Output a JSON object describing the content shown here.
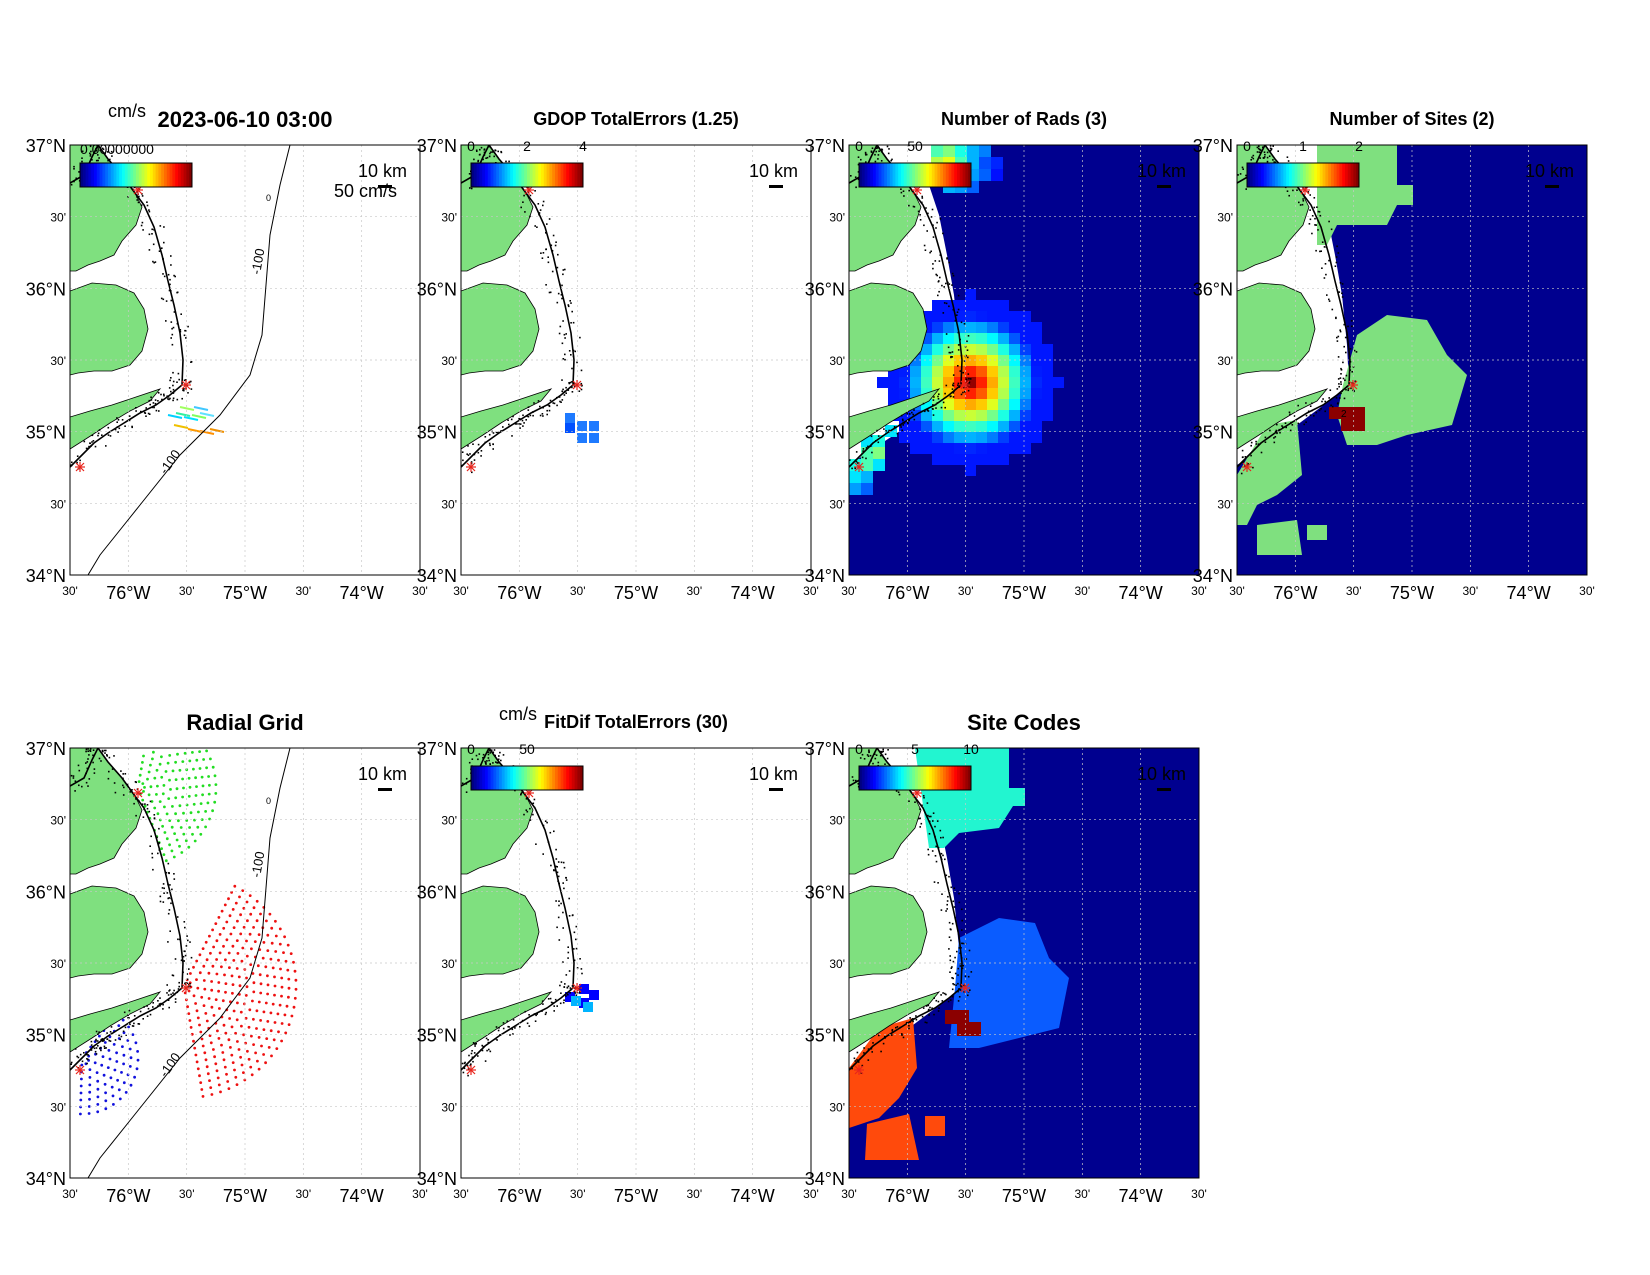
{
  "figure_title": "2023-06-10 03:00",
  "lat_labels": [
    "37°N",
    "30'",
    "36°N",
    "30'",
    "35°N",
    "30'",
    "34°N"
  ],
  "lon_labels": [
    "30'",
    "76°W",
    "30'",
    "75°W",
    "30'",
    "74°W",
    "30'"
  ],
  "scale_label": "10 km",
  "contour_label": "-100",
  "contour_label_zero": "0",
  "colors": {
    "land": "#7fe07f",
    "grid_line": "#c8c8c8",
    "ocean_fill": "#00008f",
    "site_marker": "#e8251d",
    "coast": "#000000"
  },
  "panels": [
    {
      "id": "vectors",
      "title": "2023-06-10 03:00",
      "colorbar_units": "cm/s",
      "colorbar_overlap_text": "0.00000000",
      "vector_scale_label": "50 cm/s",
      "show_contour": true
    },
    {
      "id": "gdop",
      "title": "GDOP TotalErrors (1.25)",
      "colorbar_ticks": [
        "0",
        "2",
        "4"
      ]
    },
    {
      "id": "nrads",
      "title": "Number of Rads (3)",
      "colorbar_ticks": [
        "0",
        "50"
      ]
    },
    {
      "id": "nsites",
      "title": "Number of Sites (2)",
      "colorbar_ticks": [
        "0",
        "1",
        "2"
      ],
      "inline_label": "2"
    },
    {
      "id": "radial",
      "title": "Radial Grid",
      "show_contour": true
    },
    {
      "id": "fitdif",
      "title": "FitDif TotalErrors (30)",
      "colorbar_units": "cm/s",
      "colorbar_ticks": [
        "0",
        "50"
      ]
    },
    {
      "id": "sitecodes",
      "title": "Site Codes",
      "colorbar_ticks": [
        "0",
        "5",
        "10"
      ]
    }
  ]
}
